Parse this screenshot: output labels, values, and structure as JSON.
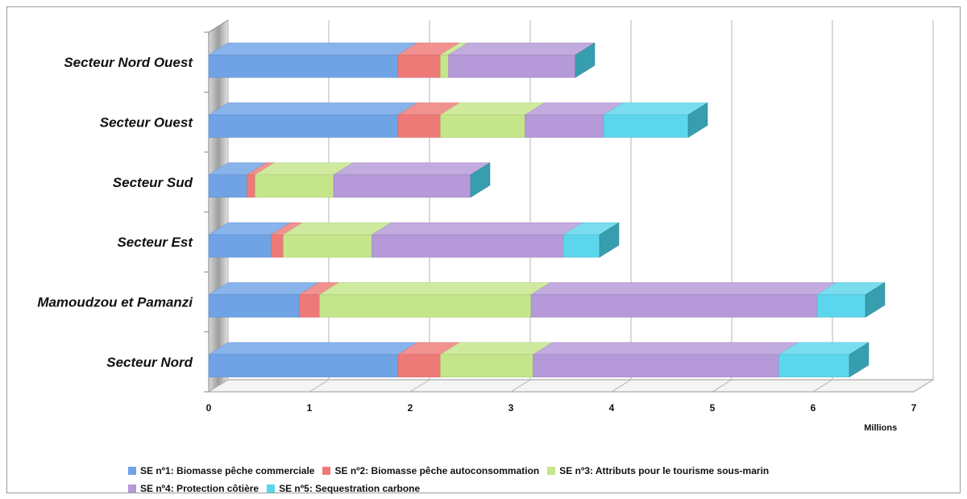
{
  "chart_data": {
    "type": "bar",
    "orientation": "horizontal",
    "stacked": true,
    "three_d": true,
    "categories": [
      "Secteur Nord Ouest",
      "Secteur Ouest",
      "Secteur Sud",
      "Secteur Est",
      "Mamoudzou et Pamanzi",
      "Secteur Nord"
    ],
    "series": [
      {
        "name": "SE nº1: Biomasse pêche commerciale",
        "color": "#6fa3e6",
        "values": [
          1.88,
          1.88,
          0.38,
          0.62,
          0.9,
          1.88
        ]
      },
      {
        "name": "SE nº2: Biomasse pêche autoconsommation",
        "color": "#ee7a78",
        "values": [
          0.42,
          0.42,
          0.08,
          0.12,
          0.2,
          0.42
        ]
      },
      {
        "name": "SE nº3: Attributs pour le tourisme sous-marin",
        "color": "#c5e58a",
        "values": [
          0.08,
          0.84,
          0.78,
          0.88,
          2.1,
          0.92
        ]
      },
      {
        "name": "SE nº4: Protection côtière",
        "color": "#b599d8",
        "values": [
          1.26,
          0.78,
          1.36,
          1.9,
          2.84,
          2.44
        ]
      },
      {
        "name": "SE nº5: Sequestration carbone",
        "color": "#5cd6ec",
        "values": [
          0,
          0.84,
          0,
          0.36,
          0.48,
          0.7
        ]
      }
    ],
    "xlim": [
      0,
      7
    ],
    "xticks": [
      "0",
      "1",
      "2",
      "3",
      "4",
      "5",
      "6",
      "7"
    ],
    "xunit": "Millions",
    "grid": true,
    "legend_position": "bottom"
  }
}
